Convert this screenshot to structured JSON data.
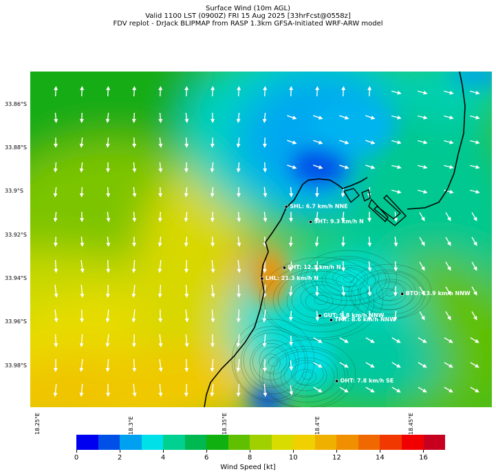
{
  "header": {
    "line1": "Surface Wind (10m AGL)",
    "line2": "Valid 1100 LST (0900Z) FRI 15 Aug 2025 [33hrFcst@0558z]",
    "line3": "FDV replot - DrJack BLIPMAP from RASP 1.3km GFSA-Initiated WRF-ARW model"
  },
  "lat_labels": [
    "33.86°S",
    "33.88°S",
    "33.9°S",
    "33.92°S",
    "33.94°S",
    "33.96°S",
    "33.98°S"
  ],
  "lon_labels": [
    "18.25°E",
    "18.3°E",
    "18.35°E",
    "18.4°E",
    "18.45°E"
  ],
  "stations": [
    {
      "id": "SHL",
      "label": "SHL: 6.7 km/h NNE"
    },
    {
      "id": "SHT",
      "label": "SHT: 9.3 km/h N"
    },
    {
      "id": "LHT",
      "label": "LHT: 12.3 km/h N"
    },
    {
      "id": "LHL",
      "label": "LHL: 21.3 km/h N"
    },
    {
      "id": "BTO",
      "label": "BTO: 13.9 km/h NNW"
    },
    {
      "id": "GUT",
      "label": "GUT: 9.8 km/h NNW"
    },
    {
      "id": "TMT",
      "label": "TMT: 8.6 km/h NNW"
    },
    {
      "id": "OHT",
      "label": "OHT: 7.8 km/h SE"
    }
  ],
  "colorbar": {
    "title": "Wind Speed [kt]",
    "tick_labels": [
      "0",
      "2",
      "4",
      "6",
      "8",
      "10",
      "12",
      "14",
      "16"
    ],
    "colors": [
      "#0000f0",
      "#0050e8",
      "#00a0f0",
      "#00e0e8",
      "#00d090",
      "#00b850",
      "#10b010",
      "#60c000",
      "#a0d000",
      "#d8dc00",
      "#f0d000",
      "#f0b000",
      "#f09000",
      "#f06800",
      "#f03800",
      "#f00000",
      "#c80020"
    ]
  },
  "chart_data": {
    "type": "heatmap",
    "variable": "Surface Wind (10m AGL)",
    "units": "kt",
    "color_range": [
      0,
      17
    ],
    "lat_range": [
      -33.845,
      -33.999
    ],
    "lon_range": [
      18.25,
      18.497
    ],
    "stations": [
      {
        "id": "SHL",
        "lat": -33.907,
        "lon": 18.387,
        "speed_kmh": 6.7,
        "dir": "NNE"
      },
      {
        "id": "SHT",
        "lat": -33.914,
        "lon": 18.4,
        "speed_kmh": 9.3,
        "dir": "N"
      },
      {
        "id": "LHT",
        "lat": -33.935,
        "lon": 18.386,
        "speed_kmh": 12.3,
        "dir": "N"
      },
      {
        "id": "LHL",
        "lat": -33.94,
        "lon": 18.374,
        "speed_kmh": 21.3,
        "dir": "N"
      },
      {
        "id": "BTO",
        "lat": -33.947,
        "lon": 18.449,
        "speed_kmh": 13.9,
        "dir": "NNW"
      },
      {
        "id": "GUT",
        "lat": -33.957,
        "lon": 18.405,
        "speed_kmh": 9.8,
        "dir": "NNW"
      },
      {
        "id": "TMT",
        "lat": -33.959,
        "lon": 18.411,
        "speed_kmh": 8.6,
        "dir": "NNW"
      },
      {
        "id": "OHT",
        "lat": -33.987,
        "lon": 18.414,
        "speed_kmh": 7.8,
        "dir": "SE"
      }
    ]
  }
}
